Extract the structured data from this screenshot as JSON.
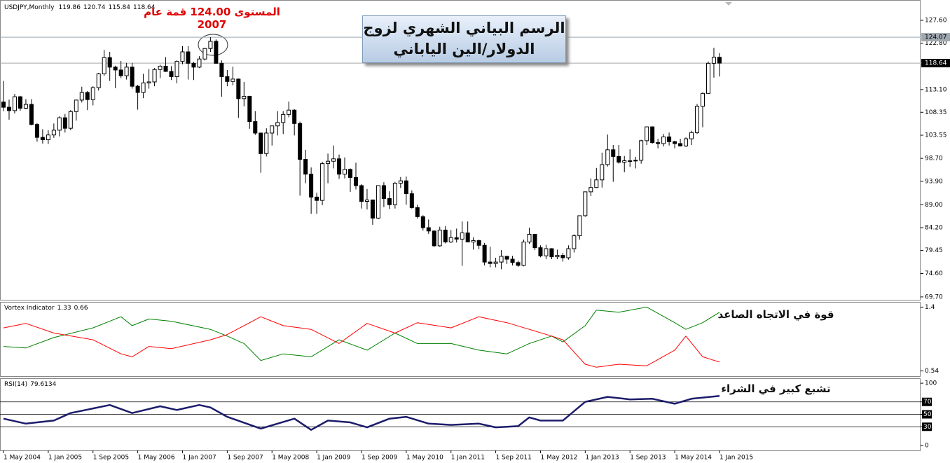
{
  "chart_data": [
    {
      "type": "candlestick",
      "title": "USDJPY,Monthly",
      "annotations": [
        "الرسم البياني الشهري لزوج الدولار/الين الياباني",
        "المستوى 124.00 قمة عام 2007"
      ],
      "x": [
        "2004-05",
        "2004-06",
        "2004-07",
        "2004-08",
        "2004-09",
        "2004-10",
        "2004-11",
        "2004-12",
        "2005-01",
        "2005-02",
        "2005-03",
        "2005-04",
        "2005-05",
        "2005-06",
        "2005-07",
        "2005-08",
        "2005-09",
        "2005-10",
        "2005-11",
        "2005-12",
        "2006-01",
        "2006-02",
        "2006-03",
        "2006-04",
        "2006-05",
        "2006-06",
        "2006-07",
        "2006-08",
        "2006-09",
        "2006-10",
        "2006-11",
        "2006-12",
        "2007-01",
        "2007-02",
        "2007-03",
        "2007-04",
        "2007-05",
        "2007-06",
        "2007-07",
        "2007-08",
        "2007-09",
        "2007-10",
        "2007-11",
        "2007-12",
        "2008-01",
        "2008-02",
        "2008-03",
        "2008-04",
        "2008-05",
        "2008-06",
        "2008-07",
        "2008-08",
        "2008-09",
        "2008-10",
        "2008-11",
        "2008-12",
        "2009-01",
        "2009-02",
        "2009-03",
        "2009-04",
        "2009-05",
        "2009-06",
        "2009-07",
        "2009-08",
        "2009-09",
        "2009-10",
        "2009-11",
        "2009-12",
        "2010-01",
        "2010-02",
        "2010-03",
        "2010-04",
        "2010-05",
        "2010-06",
        "2010-07",
        "2010-08",
        "2010-09",
        "2010-10",
        "2010-11",
        "2010-12",
        "2011-01",
        "2011-02",
        "2011-03",
        "2011-04",
        "2011-05",
        "2011-06",
        "2011-07",
        "2011-08",
        "2011-09",
        "2011-10",
        "2011-11",
        "2011-12",
        "2012-01",
        "2012-02",
        "2012-03",
        "2012-04",
        "2012-05",
        "2012-06",
        "2012-07",
        "2012-08",
        "2012-09",
        "2012-10",
        "2012-11",
        "2012-12",
        "2013-01",
        "2013-02",
        "2013-03",
        "2013-04",
        "2013-05",
        "2013-06",
        "2013-07",
        "2013-08",
        "2013-09",
        "2013-10",
        "2013-11",
        "2013-12",
        "2014-01",
        "2014-02",
        "2014-03",
        "2014-04",
        "2014-05",
        "2014-06",
        "2014-07",
        "2014-08",
        "2014-09",
        "2014-10",
        "2014-11",
        "2014-12",
        "2015-01"
      ],
      "ohlc": [
        [
          110.5,
          114.9,
          108.6,
          109.4
        ],
        [
          109.4,
          111.0,
          106.8,
          108.7
        ],
        [
          108.7,
          112.2,
          108.1,
          111.6
        ],
        [
          111.6,
          111.8,
          108.7,
          109.2
        ],
        [
          109.2,
          111.1,
          109.0,
          110.0
        ],
        [
          110.0,
          111.1,
          105.6,
          105.8
        ],
        [
          105.8,
          106.1,
          102.2,
          103.1
        ],
        [
          103.1,
          104.8,
          101.8,
          102.6
        ],
        [
          102.6,
          104.6,
          101.7,
          103.6
        ],
        [
          103.6,
          106.0,
          103.0,
          104.6
        ],
        [
          104.6,
          107.5,
          103.3,
          107.2
        ],
        [
          107.2,
          108.0,
          104.1,
          105.0
        ],
        [
          105.0,
          108.8,
          104.6,
          108.5
        ],
        [
          108.5,
          111.0,
          106.6,
          110.9
        ],
        [
          110.9,
          113.7,
          110.4,
          112.5
        ],
        [
          112.5,
          112.8,
          108.8,
          111.0
        ],
        [
          111.0,
          113.8,
          109.8,
          113.5
        ],
        [
          113.5,
          116.6,
          112.9,
          116.4
        ],
        [
          116.4,
          121.4,
          116.0,
          119.8
        ],
        [
          119.8,
          121.0,
          114.9,
          117.8
        ],
        [
          117.8,
          118.1,
          113.4,
          117.2
        ],
        [
          117.2,
          119.1,
          115.5,
          116.0
        ],
        [
          116.0,
          118.7,
          115.2,
          117.8
        ],
        [
          117.8,
          118.7,
          113.3,
          113.8
        ],
        [
          113.8,
          114.1,
          108.9,
          112.5
        ],
        [
          112.5,
          116.4,
          111.3,
          114.5
        ],
        [
          114.5,
          117.4,
          113.3,
          114.7
        ],
        [
          114.7,
          117.6,
          113.8,
          117.3
        ],
        [
          117.3,
          118.3,
          115.5,
          118.0
        ],
        [
          118.0,
          119.9,
          116.8,
          116.9
        ],
        [
          116.9,
          118.0,
          115.1,
          115.8
        ],
        [
          115.8,
          119.2,
          114.4,
          119.0
        ],
        [
          119.0,
          122.2,
          118.4,
          121.0
        ],
        [
          121.0,
          122.2,
          115.2,
          118.6
        ],
        [
          118.6,
          118.9,
          115.1,
          117.8
        ],
        [
          117.8,
          120.1,
          117.6,
          119.5
        ],
        [
          119.5,
          121.8,
          119.2,
          121.7
        ],
        [
          121.7,
          124.07,
          121.0,
          123.2
        ],
        [
          123.2,
          123.6,
          118.5,
          118.6
        ],
        [
          118.6,
          119.2,
          111.6,
          115.8
        ],
        [
          115.8,
          117.2,
          113.8,
          114.8
        ],
        [
          114.8,
          117.9,
          114.0,
          115.3
        ],
        [
          115.3,
          115.4,
          107.2,
          111.2
        ],
        [
          111.2,
          114.7,
          109.6,
          111.7
        ],
        [
          111.7,
          111.8,
          104.9,
          106.4
        ],
        [
          106.4,
          108.6,
          103.6,
          104.0
        ],
        [
          104.0,
          104.1,
          95.7,
          99.7
        ],
        [
          99.7,
          105.0,
          99.1,
          104.0
        ],
        [
          104.0,
          105.5,
          101.4,
          105.5
        ],
        [
          105.5,
          108.6,
          103.5,
          106.2
        ],
        [
          106.2,
          108.6,
          103.8,
          107.9
        ],
        [
          107.9,
          110.6,
          107.3,
          108.8
        ],
        [
          108.8,
          109.0,
          103.5,
          106.0
        ],
        [
          106.0,
          106.4,
          90.9,
          98.5
        ],
        [
          98.5,
          100.5,
          93.5,
          95.4
        ],
        [
          95.4,
          96.8,
          87.1,
          90.6
        ],
        [
          90.6,
          91.5,
          87.1,
          89.9
        ],
        [
          89.9,
          98.0,
          88.9,
          97.6
        ],
        [
          97.6,
          99.7,
          93.5,
          98.1
        ],
        [
          98.1,
          101.4,
          96.6,
          98.6
        ],
        [
          98.6,
          99.5,
          94.4,
          95.4
        ],
        [
          95.4,
          98.9,
          94.5,
          96.4
        ],
        [
          96.4,
          96.6,
          91.7,
          94.7
        ],
        [
          94.7,
          97.8,
          92.2,
          93.0
        ],
        [
          93.0,
          93.3,
          88.2,
          89.7
        ],
        [
          89.7,
          92.3,
          88.0,
          90.0
        ],
        [
          90.0,
          90.1,
          84.8,
          86.2
        ],
        [
          86.2,
          93.0,
          86.0,
          93.0
        ],
        [
          93.0,
          93.7,
          88.5,
          90.3
        ],
        [
          90.3,
          91.8,
          88.1,
          89.0
        ],
        [
          89.0,
          93.8,
          88.2,
          93.5
        ],
        [
          93.5,
          94.8,
          92.5,
          94.0
        ],
        [
          94.0,
          94.9,
          89.0,
          91.3
        ],
        [
          91.3,
          92.0,
          88.2,
          88.4
        ],
        [
          88.4,
          89.0,
          86.1,
          86.5
        ],
        [
          86.5,
          86.8,
          83.6,
          84.2
        ],
        [
          84.2,
          85.9,
          82.9,
          83.5
        ],
        [
          83.5,
          83.6,
          80.2,
          80.4
        ],
        [
          80.4,
          84.4,
          80.2,
          83.7
        ],
        [
          83.7,
          84.5,
          80.9,
          81.2
        ],
        [
          81.2,
          83.7,
          81.0,
          82.1
        ],
        [
          82.1,
          84.0,
          81.1,
          81.8
        ],
        [
          81.8,
          85.5,
          76.2,
          83.1
        ],
        [
          83.1,
          85.5,
          81.2,
          81.2
        ],
        [
          81.2,
          82.2,
          79.6,
          81.5
        ],
        [
          81.5,
          81.7,
          79.7,
          80.5
        ],
        [
          80.5,
          81.0,
          76.3,
          77.0
        ],
        [
          77.0,
          80.2,
          75.9,
          76.7
        ],
        [
          76.7,
          77.9,
          75.9,
          77.0
        ],
        [
          77.0,
          79.5,
          75.5,
          78.2
        ],
        [
          78.2,
          78.3,
          76.6,
          77.6
        ],
        [
          77.6,
          78.3,
          76.3,
          76.9
        ],
        [
          76.9,
          77.3,
          76.0,
          76.3
        ],
        [
          76.3,
          81.7,
          76.1,
          81.2
        ],
        [
          81.2,
          84.2,
          80.8,
          82.8
        ],
        [
          82.8,
          82.9,
          79.5,
          80.0
        ],
        [
          80.0,
          80.5,
          78.0,
          78.3
        ],
        [
          78.3,
          80.6,
          77.6,
          79.8
        ],
        [
          79.8,
          79.9,
          77.6,
          78.1
        ],
        [
          78.1,
          79.6,
          77.6,
          78.4
        ],
        [
          78.4,
          78.9,
          77.1,
          77.9
        ],
        [
          77.9,
          80.5,
          77.5,
          79.8
        ],
        [
          79.8,
          82.8,
          79.0,
          82.5
        ],
        [
          82.5,
          86.7,
          81.7,
          86.7
        ],
        [
          86.7,
          91.7,
          86.5,
          91.7
        ],
        [
          91.7,
          94.5,
          90.8,
          92.6
        ],
        [
          92.6,
          96.7,
          92.5,
          94.2
        ],
        [
          94.2,
          99.9,
          92.6,
          97.4
        ],
        [
          97.4,
          103.7,
          97.0,
          100.5
        ],
        [
          100.5,
          101.5,
          93.8,
          99.1
        ],
        [
          99.1,
          101.5,
          97.6,
          97.9
        ],
        [
          97.9,
          99.2,
          95.8,
          98.2
        ],
        [
          98.2,
          100.6,
          96.9,
          98.2
        ],
        [
          98.2,
          99.0,
          96.6,
          98.3
        ],
        [
          98.3,
          102.6,
          97.6,
          102.4
        ],
        [
          102.4,
          105.4,
          101.5,
          105.3
        ],
        [
          105.3,
          105.4,
          101.8,
          102.0
        ],
        [
          102.0,
          102.8,
          100.8,
          101.8
        ],
        [
          101.8,
          103.8,
          101.2,
          103.2
        ],
        [
          103.2,
          104.1,
          101.4,
          102.2
        ],
        [
          102.2,
          102.4,
          100.8,
          101.8
        ],
        [
          101.8,
          102.8,
          101.2,
          101.3
        ],
        [
          101.3,
          103.1,
          101.1,
          102.8
        ],
        [
          102.8,
          104.5,
          101.5,
          104.1
        ],
        [
          104.1,
          110.1,
          103.8,
          109.6
        ],
        [
          109.6,
          112.5,
          105.2,
          112.3
        ],
        [
          112.3,
          118.98,
          112.3,
          118.6
        ],
        [
          118.6,
          121.84,
          115.6,
          119.86
        ],
        [
          119.86,
          120.74,
          115.84,
          118.64
        ]
      ],
      "ylim": [
        69.1,
        131.85
      ],
      "yticks": [
        {
          "value": 69.7,
          "label": "69.70"
        },
        {
          "value": 74.6,
          "label": "74.60"
        },
        79.45,
        {
          "value": 84.2,
          "label": "84.20"
        },
        {
          "value": 89.0,
          "label": "89.00"
        },
        {
          "value": 93.9,
          "label": "93.90"
        },
        {
          "value": 98.7,
          "label": "98.70"
        },
        103.55,
        108.35,
        {
          "value": 113.1,
          "label": "113.10"
        },
        {
          "value": 122.8,
          "label": "122.80"
        },
        {
          "value": 127.6,
          "label": "127.60"
        }
      ],
      "hline": 124.07,
      "xticks": [
        {
          "value": "2004-05",
          "label": "1 May 2004"
        },
        {
          "value": "2005-01",
          "label": "1 Jan 2005"
        },
        {
          "value": "2005-09",
          "label": "1 Sep 2005"
        },
        {
          "value": "2006-05",
          "label": "1 May 2006"
        },
        {
          "value": "2007-01",
          "label": "1 Jan 2007"
        },
        {
          "value": "2007-09",
          "label": "1 Sep 2007"
        },
        {
          "value": "2008-05",
          "label": "1 May 2008"
        },
        {
          "value": "2009-01",
          "label": "1 Jan 2009"
        },
        {
          "value": "2009-09",
          "label": "1 Sep 2009"
        },
        {
          "value": "2010-05",
          "label": "1 May 2010"
        },
        {
          "value": "2011-01",
          "label": "1 Jan 2011"
        },
        {
          "value": "2011-09",
          "label": "1 Sep 2011"
        },
        {
          "value": "2012-05",
          "label": "1 May 2012"
        },
        {
          "value": "2013-01",
          "label": "1 Jan 2013"
        },
        {
          "value": "2013-09",
          "label": "1 Sep 2013"
        },
        {
          "value": "2014-05",
          "label": "1 May 2014"
        },
        {
          "value": "2015-01",
          "label": "1 Jan 2015"
        }
      ]
    },
    {
      "type": "line",
      "title": "Vortex Indicator",
      "annotations": [
        "قوة في الاتجاه الصاعد"
      ],
      "x": [
        "2004-05",
        "2004-09",
        "2005-02",
        "2005-09",
        "2006-02",
        "2006-04",
        "2006-07",
        "2006-11",
        "2007-06",
        "2007-09",
        "2007-12",
        "2008-03",
        "2008-07",
        "2008-12",
        "2009-05",
        "2009-10",
        "2010-03",
        "2010-07",
        "2011-01",
        "2011-06",
        "2011-11",
        "2012-03",
        "2012-07",
        "2012-09",
        "2013-01",
        "2013-03",
        "2013-07",
        "2013-12",
        "2014-05",
        "2014-07",
        "2014-10",
        "2015-01"
      ],
      "series": [
        {
          "color": "#008000",
          "values": [
            0.87,
            0.85,
            0.99,
            1.12,
            1.27,
            1.15,
            1.24,
            1.21,
            1.1,
            1.01,
            0.91,
            0.68,
            0.77,
            0.73,
            0.96,
            0.82,
            1.05,
            0.91,
            0.91,
            0.82,
            0.77,
            0.91,
            1.01,
            0.93,
            1.15,
            1.36,
            1.33,
            1.4,
            1.19,
            1.1,
            1.19,
            1.33
          ]
        },
        {
          "color": "#ff0000",
          "values": [
            1.12,
            1.18,
            1.05,
            0.96,
            0.77,
            0.73,
            0.87,
            0.84,
            0.96,
            1.03,
            1.15,
            1.27,
            1.15,
            1.1,
            0.91,
            1.18,
            1.05,
            1.19,
            1.12,
            1.27,
            1.19,
            1.1,
            1.01,
            0.96,
            0.63,
            0.59,
            0.63,
            0.61,
            0.82,
            1.01,
            0.73,
            0.66
          ]
        }
      ],
      "ylim": [
        0.47,
        1.47
      ],
      "yticks": [
        0.54,
        1.4
      ]
    },
    {
      "type": "line",
      "title": "RSI(14)",
      "annotations": [
        "تشبع كبير في الشراء"
      ],
      "x": [
        "2004-05",
        "2004-09",
        "2005-02",
        "2005-05",
        "2005-12",
        "2006-04",
        "2006-09",
        "2006-12",
        "2007-04",
        "2007-06",
        "2007-09",
        "2008-03",
        "2008-09",
        "2008-12",
        "2009-03",
        "2009-07",
        "2009-10",
        "2010-02",
        "2010-05",
        "2010-09",
        "2011-01",
        "2011-06",
        "2011-09",
        "2012-01",
        "2012-03",
        "2012-05",
        "2012-09",
        "2013-01",
        "2013-05",
        "2013-09",
        "2014-01",
        "2014-05",
        "2014-08",
        "2015-01"
      ],
      "series": [
        {
          "color": "#1c1c6b",
          "values": [
            43,
            35,
            40,
            52,
            65,
            52,
            63,
            57,
            65,
            61,
            46,
            27,
            43,
            25,
            40,
            37,
            29,
            43,
            46,
            35,
            33,
            35,
            29,
            31,
            45,
            40,
            40,
            70,
            78,
            74,
            75,
            67,
            75,
            79.6134
          ]
        }
      ],
      "ylim": [
        -8,
        108
      ],
      "yticks": [
        0,
        30,
        50,
        70,
        100
      ],
      "levels": [
        30,
        50,
        70
      ]
    }
  ]
}
